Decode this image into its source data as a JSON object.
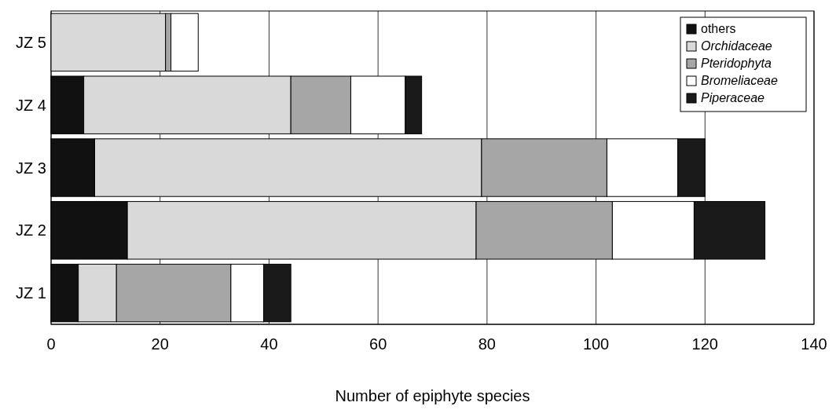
{
  "chart_data": {
    "type": "bar",
    "orientation": "horizontal",
    "stacked": true,
    "xlabel": "Number of epiphyte species",
    "categories": [
      "JZ 5",
      "JZ 4",
      "JZ 3",
      "JZ 2",
      "JZ 1"
    ],
    "series": [
      {
        "name": "others",
        "color": "#111111",
        "values": [
          0,
          6,
          8,
          14,
          5
        ]
      },
      {
        "name": "Orchidaceae",
        "color": "#d9d9d9",
        "values": [
          21,
          38,
          71,
          64,
          7
        ]
      },
      {
        "name": "Pteridophyta",
        "color": "#a6a6a6",
        "values": [
          1,
          11,
          23,
          25,
          21
        ]
      },
      {
        "name": "Bromeliaceae",
        "color": "#ffffff",
        "values": [
          5,
          10,
          13,
          15,
          6
        ]
      },
      {
        "name": "Piperaceae",
        "color": "#1a1a1a",
        "values": [
          0,
          3,
          5,
          13,
          5
        ]
      }
    ],
    "xlim": [
      0,
      140
    ],
    "xticks": [
      0,
      20,
      40,
      60,
      80,
      100,
      120,
      140
    ],
    "grid": "x",
    "legend": "top right"
  }
}
